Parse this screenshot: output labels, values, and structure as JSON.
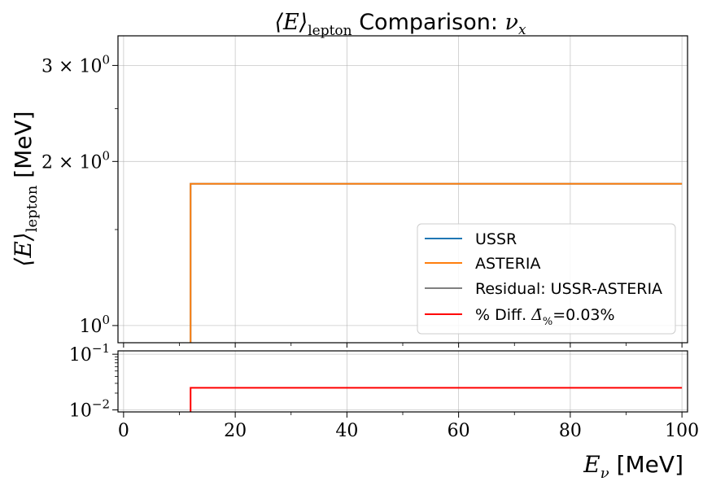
{
  "chart_data": [
    {
      "panel": "main",
      "type": "line",
      "title_text": "⟨E⟩",
      "title_sub": "lepton",
      "title_rest": " Comparison: ",
      "title_nu": "ν",
      "title_nu_sub": "x",
      "ylabel_text": "⟨E⟩",
      "ylabel_sub": "lepton",
      "ylabel_unit": " [MeV]",
      "yscale": "log",
      "xlim": [
        -1,
        101
      ],
      "ylim": [
        0.93,
        3.4
      ],
      "grid": true,
      "yticks": [
        {
          "value": 3.0,
          "mant": "3 × 10",
          "exp": "0"
        },
        {
          "value": 2.0,
          "mant": "2 × 10",
          "exp": "0"
        },
        {
          "value": 1.0,
          "mant": "10",
          "exp": "0"
        }
      ],
      "series": [
        {
          "name": "USSR",
          "color": "#1f77b4",
          "x": [
            12,
            12,
            100
          ],
          "y": [
            0.5,
            1.82,
            1.82
          ]
        },
        {
          "name": "ASTERIA",
          "color": "#ff7f0e",
          "x": [
            12,
            12,
            100
          ],
          "y": [
            0.5,
            1.82,
            1.82
          ]
        }
      ],
      "legend": {
        "placement": "lower-right",
        "entries": [
          {
            "label": "USSR",
            "color": "#1f77b4"
          },
          {
            "label": "ASTERIA",
            "color": "#ff7f0e"
          },
          {
            "label": "Residual: USSR-ASTERIA",
            "color": "#808080"
          },
          {
            "label": "% Diff. ",
            "label_math": "Δ̄",
            "label_sub": "%",
            "label_tail": "=0.03%",
            "color": "#ff0000"
          }
        ]
      }
    },
    {
      "panel": "ratio",
      "type": "line",
      "xlabel_text": "E",
      "xlabel_sub": "ν",
      "xlabel_unit": " [MeV]",
      "yscale": "log",
      "xlim": [
        -1,
        101
      ],
      "ylim": [
        0.0092,
        0.115
      ],
      "grid": true,
      "xticks": [
        0,
        20,
        40,
        60,
        80,
        100
      ],
      "yticks": [
        {
          "value": 0.1,
          "mant": "10",
          "exp": "−1"
        },
        {
          "value": 0.01,
          "mant": "10",
          "exp": "−2"
        }
      ],
      "series": [
        {
          "name": "% Diff.",
          "color": "#ff0000",
          "x": [
            12,
            12,
            100
          ],
          "y": [
            0.001,
            0.025,
            0.025
          ]
        }
      ]
    }
  ]
}
